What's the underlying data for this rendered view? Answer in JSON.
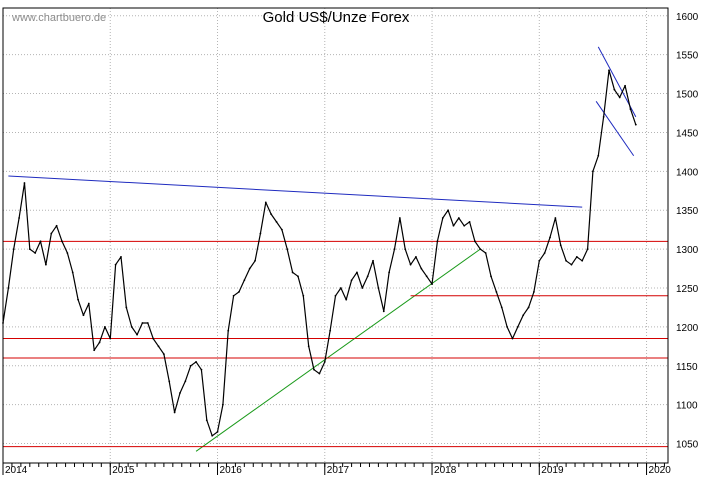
{
  "watermark": "www.chartbuero.de",
  "chart_data": {
    "type": "line",
    "title": "Gold US$/Unze Forex",
    "xlabel": "",
    "ylabel": "",
    "ylim": [
      1025,
      1610
    ],
    "xlim": [
      2014.0,
      2020.2
    ],
    "y_axis_side": "right",
    "grid": true,
    "x_tick_labels": [
      "2014",
      "2015",
      "2016",
      "2017",
      "2018",
      "2019",
      "2020"
    ],
    "y_tick_labels": [
      1050,
      1100,
      1150,
      1200,
      1250,
      1300,
      1350,
      1400,
      1450,
      1500,
      1550,
      1600
    ],
    "series": [
      {
        "x": [
          2014.0,
          2014.05,
          2014.1,
          2014.15,
          2014.2,
          2014.25,
          2014.3,
          2014.35,
          2014.4,
          2014.45,
          2014.5,
          2014.55,
          2014.6,
          2014.65,
          2014.7,
          2014.75,
          2014.8,
          2014.85,
          2014.9,
          2014.95,
          2015.0,
          2015.05,
          2015.1,
          2015.15,
          2015.2,
          2015.25,
          2015.3,
          2015.35,
          2015.4,
          2015.45,
          2015.5,
          2015.55,
          2015.6,
          2015.65,
          2015.7,
          2015.75,
          2015.8,
          2015.85,
          2015.9,
          2015.95,
          2016.0,
          2016.05,
          2016.1,
          2016.15,
          2016.2,
          2016.25,
          2016.3,
          2016.35,
          2016.4,
          2016.45,
          2016.5,
          2016.55,
          2016.6,
          2016.65,
          2016.7,
          2016.75,
          2016.8,
          2016.85,
          2016.9,
          2016.95,
          2017.0,
          2017.05,
          2017.1,
          2017.15,
          2017.2,
          2017.25,
          2017.3,
          2017.35,
          2017.4,
          2017.45,
          2017.5,
          2017.55,
          2017.6,
          2017.65,
          2017.7,
          2017.75,
          2017.8,
          2017.85,
          2017.9,
          2017.95,
          2018.0,
          2018.05,
          2018.1,
          2018.15,
          2018.2,
          2018.25,
          2018.3,
          2018.35,
          2018.4,
          2018.45,
          2018.5,
          2018.55,
          2018.6,
          2018.65,
          2018.7,
          2018.75,
          2018.8,
          2018.85,
          2018.9,
          2018.95,
          2019.0,
          2019.05,
          2019.1,
          2019.15,
          2019.2,
          2019.25,
          2019.3,
          2019.35,
          2019.4,
          2019.45,
          2019.5,
          2019.55,
          2019.6,
          2019.65,
          2019.7,
          2019.75,
          2019.8,
          2019.85,
          2019.9
        ],
        "values": [
          1205,
          1250,
          1300,
          1340,
          1385,
          1300,
          1295,
          1310,
          1280,
          1320,
          1330,
          1310,
          1295,
          1270,
          1235,
          1215,
          1230,
          1170,
          1180,
          1200,
          1185,
          1280,
          1290,
          1225,
          1200,
          1190,
          1205,
          1205,
          1185,
          1175,
          1165,
          1130,
          1090,
          1115,
          1130,
          1150,
          1155,
          1145,
          1080,
          1060,
          1065,
          1100,
          1195,
          1240,
          1245,
          1260,
          1275,
          1285,
          1320,
          1360,
          1345,
          1335,
          1325,
          1300,
          1270,
          1265,
          1240,
          1175,
          1145,
          1140,
          1155,
          1195,
          1240,
          1250,
          1235,
          1260,
          1270,
          1250,
          1265,
          1285,
          1250,
          1220,
          1270,
          1300,
          1340,
          1300,
          1280,
          1290,
          1275,
          1265,
          1255,
          1310,
          1340,
          1350,
          1330,
          1340,
          1330,
          1335,
          1310,
          1300,
          1295,
          1265,
          1245,
          1225,
          1200,
          1185,
          1200,
          1215,
          1225,
          1245,
          1285,
          1295,
          1315,
          1340,
          1305,
          1285,
          1280,
          1290,
          1285,
          1300,
          1400,
          1420,
          1470,
          1530,
          1505,
          1495,
          1510,
          1480,
          1460
        ]
      }
    ],
    "annotations": [
      {
        "type": "trendline",
        "color": "#1f2bbf",
        "from": [
          2014.05,
          1394
        ],
        "to": [
          2019.4,
          1354
        ]
      },
      {
        "type": "trendline",
        "color": "#1a9a1a",
        "from": [
          2015.8,
          1040
        ],
        "to": [
          2018.45,
          1300
        ]
      },
      {
        "type": "hline",
        "color": "#d40000",
        "y": 1310
      },
      {
        "type": "hline",
        "color": "#d40000",
        "y": 1240,
        "from_x": 2017.8
      },
      {
        "type": "hline",
        "color": "#d40000",
        "y": 1185
      },
      {
        "type": "hline",
        "color": "#d40000",
        "y": 1160
      },
      {
        "type": "hline",
        "color": "#d40000",
        "y": 1046
      },
      {
        "type": "trendline",
        "color": "#1f2bbf",
        "from": [
          2019.55,
          1560
        ],
        "to": [
          2019.9,
          1470
        ]
      },
      {
        "type": "trendline",
        "color": "#1f2bbf",
        "from": [
          2019.53,
          1490
        ],
        "to": [
          2019.88,
          1420
        ]
      }
    ]
  },
  "colors": {
    "price": "#000000",
    "grid": "#b4b4b4",
    "axis": "#000000",
    "text": "#000000",
    "watermark": "#8c8c8c"
  }
}
